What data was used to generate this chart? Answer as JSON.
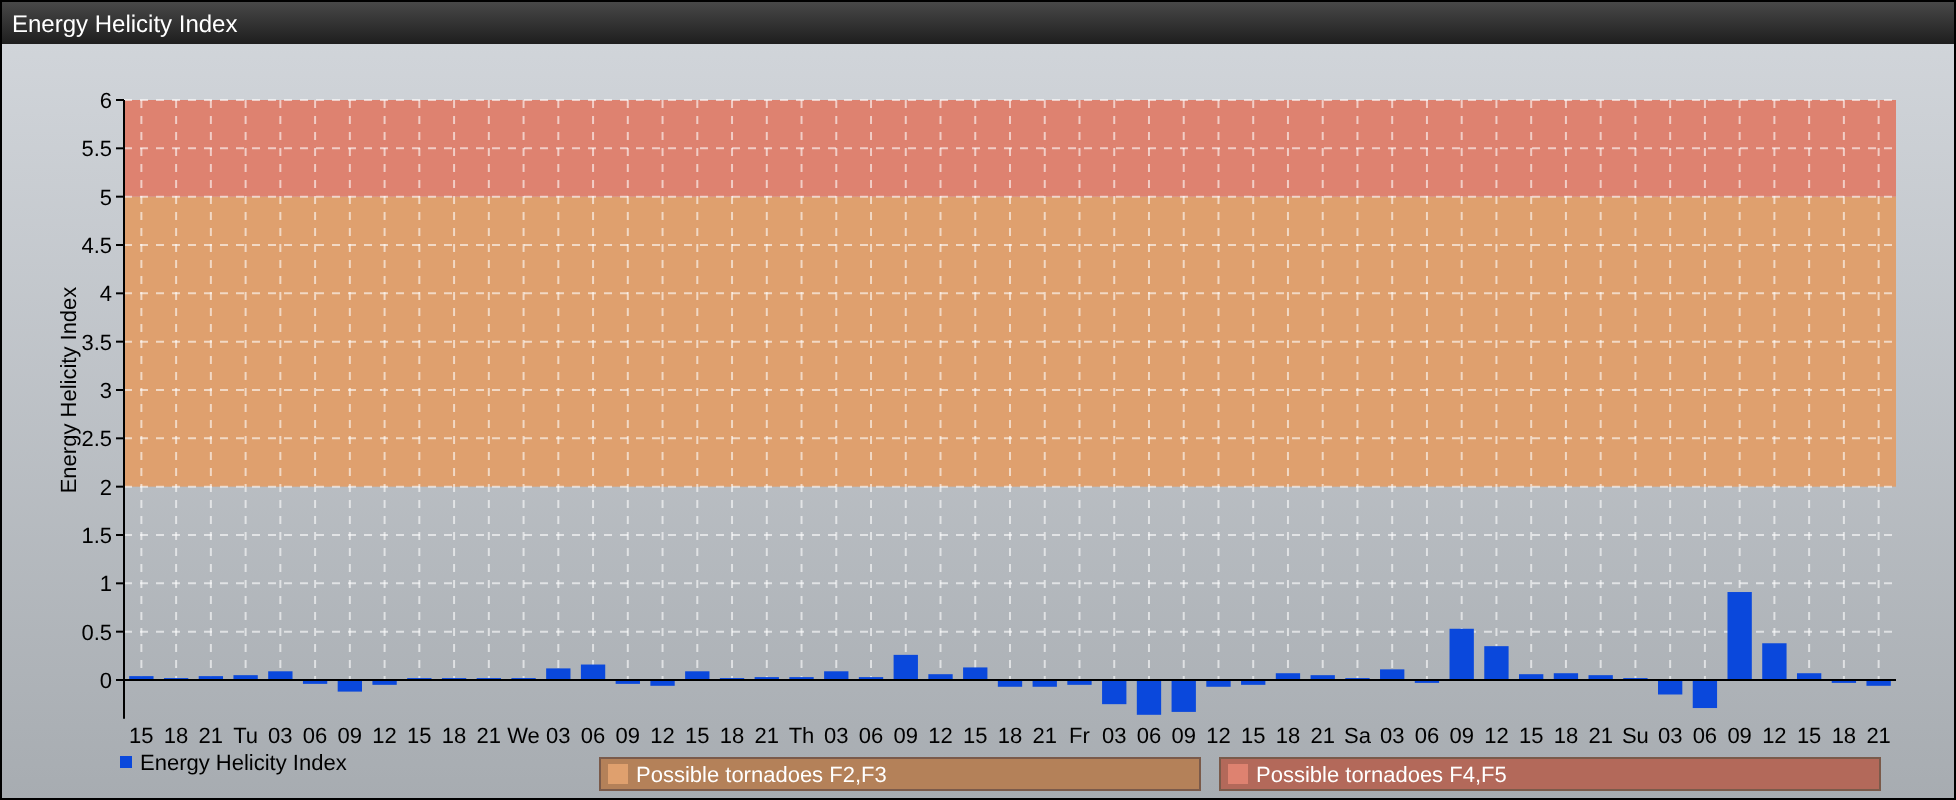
{
  "chart_data": {
    "type": "bar",
    "title": "Energy Helicity Index",
    "ylabel": "Energy Helicity Index",
    "categories": [
      "15",
      "18",
      "21",
      "Tu",
      "03",
      "06",
      "09",
      "12",
      "15",
      "18",
      "21",
      "We",
      "03",
      "06",
      "09",
      "12",
      "15",
      "18",
      "21",
      "Th",
      "03",
      "06",
      "09",
      "12",
      "15",
      "18",
      "21",
      "Fr",
      "03",
      "06",
      "09",
      "12",
      "15",
      "18",
      "21",
      "Sa",
      "03",
      "06",
      "09",
      "12",
      "15",
      "18",
      "21",
      "Su",
      "03",
      "06",
      "09",
      "12",
      "15",
      "18",
      "21"
    ],
    "series": [
      {
        "name": "Energy Helicity Index",
        "color": "#0a48dc",
        "values": [
          0.04,
          0.02,
          0.04,
          0.05,
          0.09,
          -0.04,
          -0.12,
          -0.05,
          0.02,
          0.02,
          0.02,
          0.02,
          0.12,
          0.16,
          -0.04,
          -0.06,
          0.09,
          0.02,
          0.03,
          0.03,
          0.09,
          0.03,
          0.26,
          0.06,
          0.13,
          -0.07,
          -0.07,
          -0.05,
          -0.25,
          -0.36,
          -0.33,
          -0.07,
          -0.05,
          0.07,
          0.05,
          0.02,
          0.11,
          -0.03,
          0.53,
          0.35,
          0.06,
          0.07,
          0.05,
          0.02,
          -0.15,
          -0.29,
          0.91,
          0.38,
          0.07,
          -0.03,
          -0.06
        ]
      }
    ],
    "ylim": [
      -0.4,
      6
    ],
    "yticks": [
      0,
      0.5,
      1,
      1.5,
      2,
      2.5,
      3,
      3.5,
      4,
      4.5,
      5,
      5.5,
      6
    ],
    "bands": [
      {
        "axis": "y",
        "from": 2,
        "to": 5,
        "label": "Possible tornadoes F2,F3",
        "color": "#dfa06e"
      },
      {
        "axis": "y",
        "from": 5,
        "to": 6,
        "label": "Possible tornadoes F4,F5",
        "color": "#de8270"
      }
    ],
    "grid": true,
    "legend": "bottom left"
  }
}
